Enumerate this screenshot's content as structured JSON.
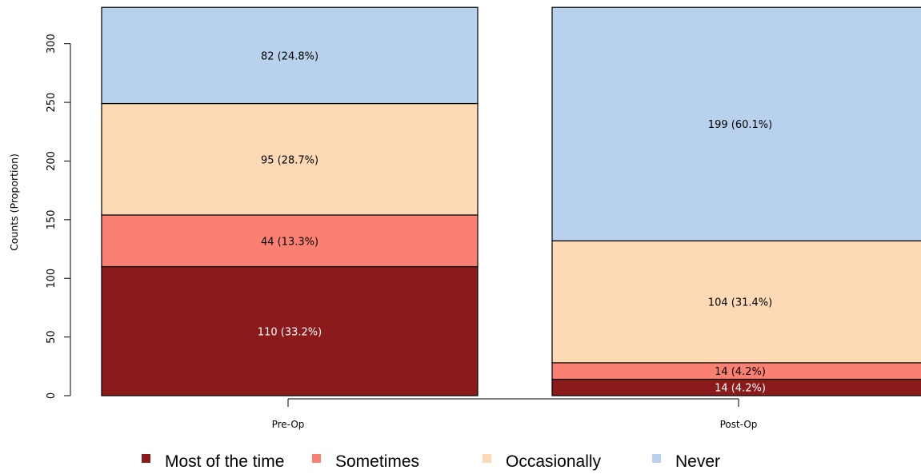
{
  "chart_data": {
    "type": "bar",
    "stacked": true,
    "categories": [
      "Pre-Op",
      "Post-Op"
    ],
    "series": [
      {
        "name": "Most of the time",
        "values": [
          110,
          14
        ],
        "labels": [
          "110 (33.2%)",
          "14 (4.2%)"
        ],
        "color": "#8b1a1a",
        "label_color": "#ffffff"
      },
      {
        "name": "Sometimes",
        "values": [
          44,
          14
        ],
        "labels": [
          "44 (13.3%)",
          "14 (4.2%)"
        ],
        "color": "#fa8072",
        "label_color": "#000000"
      },
      {
        "name": "Occasionally",
        "values": [
          95,
          104
        ],
        "labels": [
          "95 (28.7%)",
          "104 (31.4%)"
        ],
        "color": "#fdd9b5",
        "label_color": "#000000"
      },
      {
        "name": "Never",
        "values": [
          82,
          199
        ],
        "labels": [
          "82 (24.8%)",
          "199 (60.1%)"
        ],
        "color": "#b8d2ed",
        "label_color": "#000000"
      }
    ],
    "ylabel": "Counts (Proportion)",
    "xlabel": "",
    "ylim": [
      0,
      331
    ],
    "yticks": [
      0,
      50,
      100,
      150,
      200,
      250,
      300
    ],
    "grid": false,
    "legend_position": "bottom"
  }
}
